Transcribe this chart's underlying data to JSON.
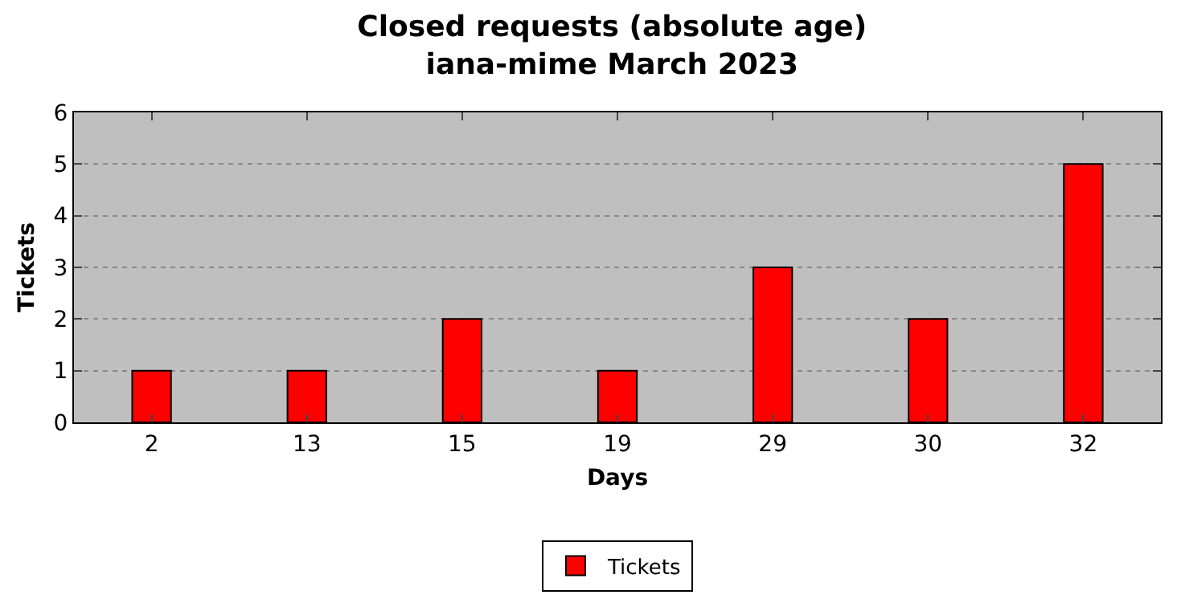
{
  "chart_data": {
    "type": "bar",
    "title": "Closed requests (absolute age)",
    "subtitle": "iana-mime March 2023",
    "xlabel": "Days",
    "ylabel": "Tickets",
    "categories": [
      "2",
      "13",
      "15",
      "19",
      "29",
      "30",
      "32"
    ],
    "series": [
      {
        "name": "Tickets",
        "color": "#ff0000",
        "values": [
          1,
          1,
          2,
          1,
          3,
          2,
          5
        ]
      }
    ],
    "ylim": [
      0,
      6
    ],
    "yticks": [
      0,
      1,
      2,
      3,
      4,
      5,
      6
    ],
    "grid": "y",
    "legend": "bottom"
  }
}
